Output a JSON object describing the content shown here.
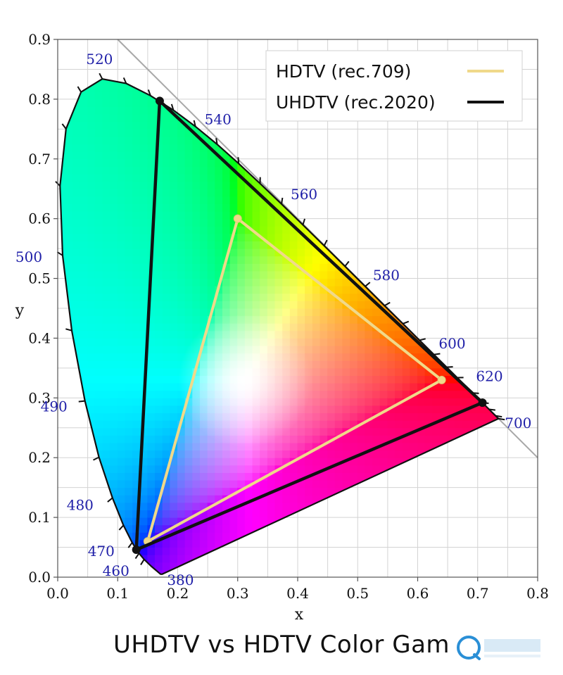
{
  "chart_data": {
    "type": "scatter",
    "title": "",
    "xlabel": "x",
    "ylabel": "y",
    "xlim": [
      0.0,
      0.8
    ],
    "ylim": [
      0.0,
      0.9
    ],
    "grid": true,
    "legend_position": "top-right",
    "x_ticks": [
      "0.0",
      "0.1",
      "0.2",
      "0.3",
      "0.4",
      "0.5",
      "0.6",
      "0.7",
      "0.8"
    ],
    "y_ticks": [
      "0.0",
      "0.1",
      "0.2",
      "0.3",
      "0.4",
      "0.5",
      "0.6",
      "0.7",
      "0.8",
      "0.9"
    ],
    "spectral_locus": [
      {
        "nm": 380,
        "x": 0.1741,
        "y": 0.005
      },
      {
        "nm": 420,
        "x": 0.1714,
        "y": 0.0051
      },
      {
        "nm": 450,
        "x": 0.1566,
        "y": 0.0177
      },
      {
        "nm": 460,
        "x": 0.144,
        "y": 0.0297
      },
      {
        "nm": 465,
        "x": 0.1355,
        "y": 0.0399
      },
      {
        "nm": 470,
        "x": 0.1241,
        "y": 0.0578
      },
      {
        "nm": 475,
        "x": 0.1096,
        "y": 0.0868
      },
      {
        "nm": 480,
        "x": 0.0913,
        "y": 0.1327
      },
      {
        "nm": 485,
        "x": 0.0687,
        "y": 0.2007
      },
      {
        "nm": 490,
        "x": 0.0454,
        "y": 0.295
      },
      {
        "nm": 495,
        "x": 0.0235,
        "y": 0.4127
      },
      {
        "nm": 500,
        "x": 0.0082,
        "y": 0.5384
      },
      {
        "nm": 505,
        "x": 0.0039,
        "y": 0.6548
      },
      {
        "nm": 510,
        "x": 0.0139,
        "y": 0.7502
      },
      {
        "nm": 515,
        "x": 0.0389,
        "y": 0.812
      },
      {
        "nm": 520,
        "x": 0.0743,
        "y": 0.8338
      },
      {
        "nm": 525,
        "x": 0.1142,
        "y": 0.8262
      },
      {
        "nm": 530,
        "x": 0.1547,
        "y": 0.8059
      },
      {
        "nm": 535,
        "x": 0.1929,
        "y": 0.7816
      },
      {
        "nm": 540,
        "x": 0.2296,
        "y": 0.7543
      },
      {
        "nm": 545,
        "x": 0.2658,
        "y": 0.7243
      },
      {
        "nm": 550,
        "x": 0.3016,
        "y": 0.6923
      },
      {
        "nm": 555,
        "x": 0.3373,
        "y": 0.6589
      },
      {
        "nm": 560,
        "x": 0.3731,
        "y": 0.6245
      },
      {
        "nm": 565,
        "x": 0.4087,
        "y": 0.5896
      },
      {
        "nm": 570,
        "x": 0.4441,
        "y": 0.5547
      },
      {
        "nm": 575,
        "x": 0.4788,
        "y": 0.5202
      },
      {
        "nm": 580,
        "x": 0.5125,
        "y": 0.4866
      },
      {
        "nm": 585,
        "x": 0.5448,
        "y": 0.4544
      },
      {
        "nm": 590,
        "x": 0.5752,
        "y": 0.4242
      },
      {
        "nm": 595,
        "x": 0.6029,
        "y": 0.3965
      },
      {
        "nm": 600,
        "x": 0.627,
        "y": 0.3725
      },
      {
        "nm": 605,
        "x": 0.6482,
        "y": 0.3514
      },
      {
        "nm": 610,
        "x": 0.6658,
        "y": 0.334
      },
      {
        "nm": 620,
        "x": 0.6915,
        "y": 0.3083
      },
      {
        "nm": 630,
        "x": 0.7079,
        "y": 0.292
      },
      {
        "nm": 640,
        "x": 0.719,
        "y": 0.2809
      },
      {
        "nm": 660,
        "x": 0.73,
        "y": 0.27
      },
      {
        "nm": 700,
        "x": 0.7347,
        "y": 0.2653
      }
    ],
    "wavelength_labels": [
      {
        "text": "380",
        "nm": 380
      },
      {
        "text": "460",
        "nm": 460
      },
      {
        "text": "470",
        "nm": 470
      },
      {
        "text": "480",
        "nm": 480
      },
      {
        "text": "490",
        "nm": 490
      },
      {
        "text": "500",
        "nm": 500
      },
      {
        "text": "520",
        "nm": 520
      },
      {
        "text": "540",
        "nm": 540
      },
      {
        "text": "560",
        "nm": 560
      },
      {
        "text": "580",
        "nm": 580
      },
      {
        "text": "600",
        "nm": 600
      },
      {
        "text": "620",
        "nm": 620
      },
      {
        "text": "700",
        "nm": 700
      }
    ],
    "series": [
      {
        "name": "HDTV (rec.709)",
        "color": "#f0d98a",
        "points": [
          {
            "x": 0.64,
            "y": 0.33
          },
          {
            "x": 0.3,
            "y": 0.6
          },
          {
            "x": 0.15,
            "y": 0.06
          }
        ]
      },
      {
        "name": "UHDTV (rec.2020)",
        "color": "#111111",
        "points": [
          {
            "x": 0.708,
            "y": 0.292
          },
          {
            "x": 0.17,
            "y": 0.797
          },
          {
            "x": 0.131,
            "y": 0.046
          }
        ]
      }
    ],
    "reference_line": {
      "color": "#a8a8a8",
      "from": {
        "x": 0.1,
        "y": 0.9
      },
      "to": {
        "x": 0.8,
        "y": 0.2
      }
    }
  },
  "caption": "UHDTV vs HDTV Color Gam",
  "watermark_icon": "watermark-logo-icon"
}
